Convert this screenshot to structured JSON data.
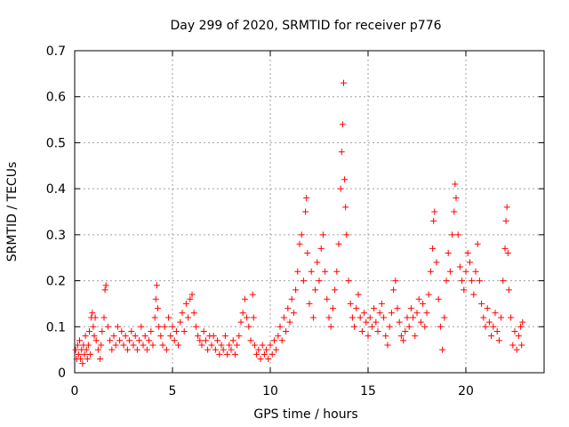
{
  "chart_data": {
    "type": "scatter",
    "title": "Day 299 of 2020, SRMTID for receiver p776",
    "xlabel": "GPS time / hours",
    "ylabel": "SRMTID / TECUs",
    "xlim": [
      0,
      24
    ],
    "ylim": [
      0,
      0.7
    ],
    "xticks": [
      0,
      5,
      10,
      15,
      20
    ],
    "xtick_labels": [
      "0",
      "5",
      "10",
      "15",
      "20"
    ],
    "yticks": [
      0,
      0.1,
      0.2,
      0.3,
      0.4,
      0.5,
      0.6,
      0.7
    ],
    "ytick_labels": [
      "0",
      "0.1",
      "0.2",
      "0.3",
      "0.4",
      "0.5",
      "0.6",
      "0.7"
    ],
    "grid": true,
    "marker": "+",
    "color": "#ff0000",
    "series": [
      {
        "name": "SRMTID",
        "points": [
          [
            0.05,
            0.05
          ],
          [
            0.1,
            0.03
          ],
          [
            0.15,
            0.06
          ],
          [
            0.2,
            0.04
          ],
          [
            0.25,
            0.07
          ],
          [
            0.3,
            0.03
          ],
          [
            0.35,
            0.05
          ],
          [
            0.4,
            0.02
          ],
          [
            0.45,
            0.06
          ],
          [
            0.5,
            0.04
          ],
          [
            0.55,
            0.08
          ],
          [
            0.6,
            0.05
          ],
          [
            0.65,
            0.03
          ],
          [
            0.7,
            0.06
          ],
          [
            0.75,
            0.09
          ],
          [
            0.8,
            0.04
          ],
          [
            0.85,
            0.12
          ],
          [
            0.9,
            0.13
          ],
          [
            0.95,
            0.1
          ],
          [
            1.0,
            0.08
          ],
          [
            1.05,
            0.12
          ],
          [
            1.1,
            0.07
          ],
          [
            1.2,
            0.05
          ],
          [
            1.3,
            0.03
          ],
          [
            1.35,
            0.06
          ],
          [
            1.4,
            0.09
          ],
          [
            1.5,
            0.12
          ],
          [
            1.55,
            0.18
          ],
          [
            1.6,
            0.19
          ],
          [
            1.7,
            0.1
          ],
          [
            1.8,
            0.07
          ],
          [
            1.9,
            0.05
          ],
          [
            2.0,
            0.08
          ],
          [
            2.1,
            0.06
          ],
          [
            2.2,
            0.1
          ],
          [
            2.3,
            0.07
          ],
          [
            2.4,
            0.09
          ],
          [
            2.5,
            0.06
          ],
          [
            2.6,
            0.08
          ],
          [
            2.7,
            0.05
          ],
          [
            2.8,
            0.07
          ],
          [
            2.9,
            0.09
          ],
          [
            3.0,
            0.06
          ],
          [
            3.1,
            0.08
          ],
          [
            3.2,
            0.05
          ],
          [
            3.3,
            0.07
          ],
          [
            3.4,
            0.1
          ],
          [
            3.5,
            0.06
          ],
          [
            3.6,
            0.08
          ],
          [
            3.7,
            0.05
          ],
          [
            3.8,
            0.07
          ],
          [
            3.9,
            0.09
          ],
          [
            4.0,
            0.06
          ],
          [
            4.1,
            0.12
          ],
          [
            4.15,
            0.16
          ],
          [
            4.2,
            0.19
          ],
          [
            4.25,
            0.14
          ],
          [
            4.3,
            0.1
          ],
          [
            4.4,
            0.08
          ],
          [
            4.5,
            0.06
          ],
          [
            4.6,
            0.1
          ],
          [
            4.7,
            0.05
          ],
          [
            4.8,
            0.12
          ],
          [
            4.9,
            0.08
          ],
          [
            5.0,
            0.1
          ],
          [
            5.1,
            0.07
          ],
          [
            5.2,
            0.09
          ],
          [
            5.3,
            0.06
          ],
          [
            5.4,
            0.11
          ],
          [
            5.5,
            0.13
          ],
          [
            5.6,
            0.09
          ],
          [
            5.7,
            0.15
          ],
          [
            5.8,
            0.12
          ],
          [
            5.9,
            0.16
          ],
          [
            6.0,
            0.17
          ],
          [
            6.1,
            0.13
          ],
          [
            6.2,
            0.1
          ],
          [
            6.3,
            0.08
          ],
          [
            6.4,
            0.07
          ],
          [
            6.5,
            0.06
          ],
          [
            6.6,
            0.09
          ],
          [
            6.7,
            0.07
          ],
          [
            6.8,
            0.05
          ],
          [
            6.9,
            0.08
          ],
          [
            7.0,
            0.06
          ],
          [
            7.1,
            0.08
          ],
          [
            7.2,
            0.05
          ],
          [
            7.3,
            0.07
          ],
          [
            7.4,
            0.04
          ],
          [
            7.5,
            0.06
          ],
          [
            7.6,
            0.05
          ],
          [
            7.7,
            0.08
          ],
          [
            7.8,
            0.04
          ],
          [
            7.9,
            0.06
          ],
          [
            8.0,
            0.05
          ],
          [
            8.1,
            0.07
          ],
          [
            8.2,
            0.04
          ],
          [
            8.3,
            0.06
          ],
          [
            8.4,
            0.08
          ],
          [
            8.5,
            0.11
          ],
          [
            8.6,
            0.13
          ],
          [
            8.7,
            0.16
          ],
          [
            8.8,
            0.12
          ],
          [
            8.9,
            0.1
          ],
          [
            9.0,
            0.07
          ],
          [
            9.1,
            0.17
          ],
          [
            9.15,
            0.12
          ],
          [
            9.2,
            0.06
          ],
          [
            9.3,
            0.04
          ],
          [
            9.4,
            0.05
          ],
          [
            9.5,
            0.03
          ],
          [
            9.6,
            0.06
          ],
          [
            9.7,
            0.04
          ],
          [
            9.8,
            0.05
          ],
          [
            9.9,
            0.03
          ],
          [
            10.0,
            0.06
          ],
          [
            10.1,
            0.04
          ],
          [
            10.2,
            0.07
          ],
          [
            10.3,
            0.05
          ],
          [
            10.4,
            0.08
          ],
          [
            10.5,
            0.1
          ],
          [
            10.6,
            0.07
          ],
          [
            10.7,
            0.12
          ],
          [
            10.8,
            0.09
          ],
          [
            10.9,
            0.14
          ],
          [
            11.0,
            0.11
          ],
          [
            11.1,
            0.16
          ],
          [
            11.2,
            0.13
          ],
          [
            11.3,
            0.18
          ],
          [
            11.4,
            0.22
          ],
          [
            11.5,
            0.28
          ],
          [
            11.6,
            0.3
          ],
          [
            11.7,
            0.2
          ],
          [
            11.8,
            0.35
          ],
          [
            11.85,
            0.38
          ],
          [
            11.9,
            0.26
          ],
          [
            12.0,
            0.15
          ],
          [
            12.1,
            0.22
          ],
          [
            12.2,
            0.12
          ],
          [
            12.3,
            0.18
          ],
          [
            12.4,
            0.24
          ],
          [
            12.5,
            0.2
          ],
          [
            12.6,
            0.27
          ],
          [
            12.7,
            0.3
          ],
          [
            12.8,
            0.22
          ],
          [
            12.9,
            0.16
          ],
          [
            13.0,
            0.12
          ],
          [
            13.1,
            0.1
          ],
          [
            13.2,
            0.14
          ],
          [
            13.3,
            0.18
          ],
          [
            13.4,
            0.22
          ],
          [
            13.5,
            0.28
          ],
          [
            13.6,
            0.4
          ],
          [
            13.65,
            0.48
          ],
          [
            13.7,
            0.54
          ],
          [
            13.75,
            0.63
          ],
          [
            13.8,
            0.42
          ],
          [
            13.85,
            0.36
          ],
          [
            13.9,
            0.3
          ],
          [
            14.0,
            0.2
          ],
          [
            14.1,
            0.15
          ],
          [
            14.2,
            0.12
          ],
          [
            14.3,
            0.1
          ],
          [
            14.4,
            0.14
          ],
          [
            14.5,
            0.17
          ],
          [
            14.6,
            0.12
          ],
          [
            14.7,
            0.09
          ],
          [
            14.8,
            0.13
          ],
          [
            14.9,
            0.11
          ],
          [
            15.0,
            0.08
          ],
          [
            15.1,
            0.12
          ],
          [
            15.2,
            0.1
          ],
          [
            15.3,
            0.14
          ],
          [
            15.4,
            0.11
          ],
          [
            15.5,
            0.09
          ],
          [
            15.6,
            0.13
          ],
          [
            15.7,
            0.15
          ],
          [
            15.8,
            0.12
          ],
          [
            15.9,
            0.08
          ],
          [
            16.0,
            0.06
          ],
          [
            16.1,
            0.1
          ],
          [
            16.2,
            0.13
          ],
          [
            16.3,
            0.18
          ],
          [
            16.4,
            0.2
          ],
          [
            16.5,
            0.14
          ],
          [
            16.6,
            0.11
          ],
          [
            16.7,
            0.08
          ],
          [
            16.8,
            0.07
          ],
          [
            16.9,
            0.09
          ],
          [
            17.0,
            0.12
          ],
          [
            17.1,
            0.1
          ],
          [
            17.2,
            0.14
          ],
          [
            17.3,
            0.12
          ],
          [
            17.4,
            0.08
          ],
          [
            17.5,
            0.13
          ],
          [
            17.6,
            0.16
          ],
          [
            17.7,
            0.11
          ],
          [
            17.8,
            0.15
          ],
          [
            17.9,
            0.1
          ],
          [
            18.0,
            0.13
          ],
          [
            18.1,
            0.17
          ],
          [
            18.2,
            0.22
          ],
          [
            18.3,
            0.27
          ],
          [
            18.35,
            0.33
          ],
          [
            18.4,
            0.35
          ],
          [
            18.5,
            0.24
          ],
          [
            18.6,
            0.16
          ],
          [
            18.7,
            0.1
          ],
          [
            18.8,
            0.05
          ],
          [
            18.9,
            0.12
          ],
          [
            19.0,
            0.2
          ],
          [
            19.1,
            0.26
          ],
          [
            19.2,
            0.22
          ],
          [
            19.3,
            0.3
          ],
          [
            19.4,
            0.35
          ],
          [
            19.45,
            0.41
          ],
          [
            19.5,
            0.38
          ],
          [
            19.6,
            0.3
          ],
          [
            19.7,
            0.23
          ],
          [
            19.8,
            0.2
          ],
          [
            19.9,
            0.18
          ],
          [
            20.0,
            0.22
          ],
          [
            20.1,
            0.26
          ],
          [
            20.2,
            0.24
          ],
          [
            20.3,
            0.2
          ],
          [
            20.4,
            0.17
          ],
          [
            20.5,
            0.22
          ],
          [
            20.6,
            0.28
          ],
          [
            20.7,
            0.2
          ],
          [
            20.8,
            0.15
          ],
          [
            20.9,
            0.12
          ],
          [
            21.0,
            0.1
          ],
          [
            21.1,
            0.14
          ],
          [
            21.2,
            0.11
          ],
          [
            21.3,
            0.08
          ],
          [
            21.4,
            0.1
          ],
          [
            21.5,
            0.13
          ],
          [
            21.6,
            0.09
          ],
          [
            21.7,
            0.07
          ],
          [
            21.8,
            0.12
          ],
          [
            21.9,
            0.2
          ],
          [
            22.0,
            0.27
          ],
          [
            22.05,
            0.33
          ],
          [
            22.1,
            0.36
          ],
          [
            22.15,
            0.26
          ],
          [
            22.2,
            0.18
          ],
          [
            22.3,
            0.12
          ],
          [
            22.4,
            0.06
          ],
          [
            22.5,
            0.09
          ],
          [
            22.6,
            0.05
          ],
          [
            22.7,
            0.08
          ],
          [
            22.8,
            0.1
          ],
          [
            22.85,
            0.06
          ],
          [
            22.9,
            0.11
          ]
        ]
      }
    ]
  }
}
